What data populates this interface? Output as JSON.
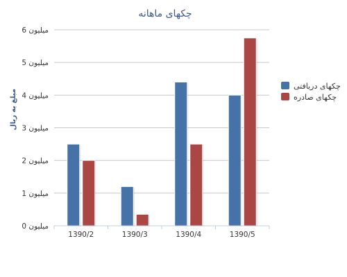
{
  "chart_data": {
    "type": "bar",
    "title": "چکهای ماهانه",
    "xlabel": "",
    "ylabel": "مبلغ به ریال",
    "categories": [
      "1390/2",
      "1390/3",
      "1390/4",
      "1390/5"
    ],
    "series": [
      {
        "name": "چکهای دریافتی",
        "color": "#4572a7",
        "values": [
          2.5,
          1.2,
          4.4,
          4.0
        ]
      },
      {
        "name": "چکهای صادره",
        "color": "#aa4643",
        "values": [
          2.0,
          0.35,
          2.5,
          5.75
        ]
      }
    ],
    "y_ticks": [
      0,
      1,
      2,
      3,
      4,
      5,
      6
    ],
    "y_tick_unit": "میلیون",
    "ylim": [
      0,
      6
    ],
    "grid": true,
    "legend_position": "right"
  }
}
